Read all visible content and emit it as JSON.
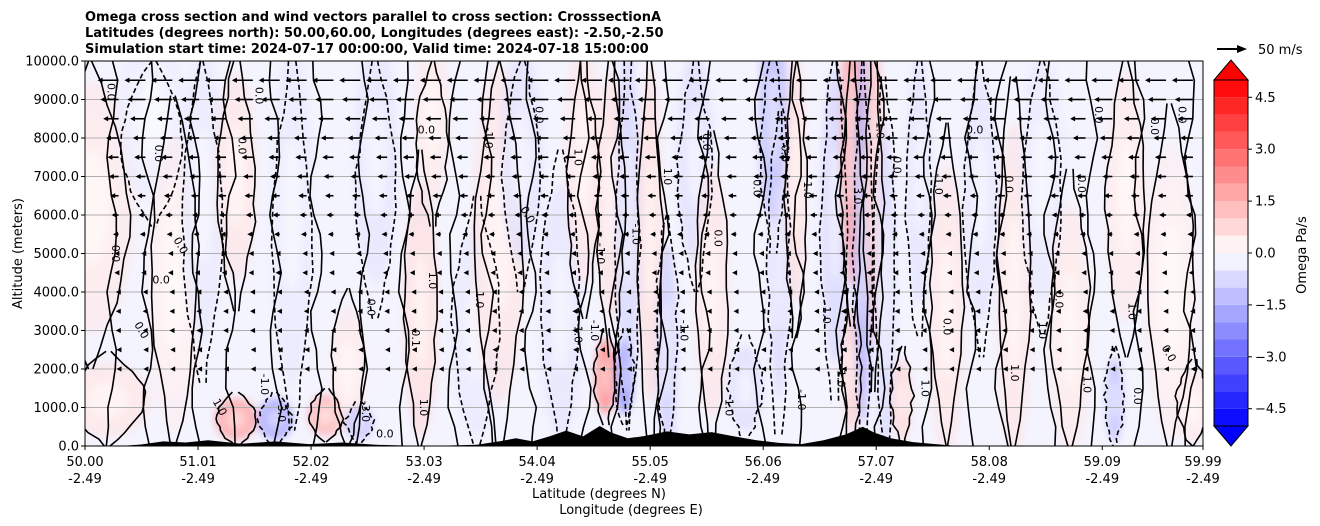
{
  "chart_data": {
    "type": "heatmap",
    "title_lines": [
      "Omega cross section and wind vectors parallel to cross section: CrosssectionA",
      "Latitudes (degrees north): 50.00,60.00, Longitudes (degrees east): -2.50,-2.50",
      "Simulation start time: 2024-07-17 00:00:00, Valid time: 2024-07-18 15:00:00"
    ],
    "xlabel_lines": [
      "Latitude (degrees N)",
      "Longitude (degrees E)"
    ],
    "ylabel": "Altitude (meters)",
    "xlim": [
      50.0,
      59.99
    ],
    "ylim": [
      0,
      10000
    ],
    "x_ticks": [
      {
        "value": 50.0,
        "lat": "50.00",
        "lon": "-2.49"
      },
      {
        "value": 51.01,
        "lat": "51.01",
        "lon": "-2.49"
      },
      {
        "value": 52.02,
        "lat": "52.02",
        "lon": "-2.49"
      },
      {
        "value": 53.03,
        "lat": "53.03",
        "lon": "-2.49"
      },
      {
        "value": 54.04,
        "lat": "54.04",
        "lon": "-2.49"
      },
      {
        "value": 55.05,
        "lat": "55.05",
        "lon": "-2.49"
      },
      {
        "value": 56.06,
        "lat": "56.06",
        "lon": "-2.49"
      },
      {
        "value": 57.07,
        "lat": "57.07",
        "lon": "-2.49"
      },
      {
        "value": 58.08,
        "lat": "58.08",
        "lon": "-2.49"
      },
      {
        "value": 59.09,
        "lat": "59.09",
        "lon": "-2.49"
      },
      {
        "value": 59.99,
        "lat": "59.99",
        "lon": "-2.49"
      }
    ],
    "y_ticks": [
      {
        "value": 0,
        "label": "0.0"
      },
      {
        "value": 1000,
        "label": "1000.0"
      },
      {
        "value": 2000,
        "label": "2000.0"
      },
      {
        "value": 3000,
        "label": "3000.0"
      },
      {
        "value": 4000,
        "label": "4000.0"
      },
      {
        "value": 5000,
        "label": "5000.0"
      },
      {
        "value": 6000,
        "label": "6000.0"
      },
      {
        "value": 7000,
        "label": "7000.0"
      },
      {
        "value": 8000,
        "label": "8000.0"
      },
      {
        "value": 9000,
        "label": "9000.0"
      },
      {
        "value": 10000,
        "label": "10000.0"
      }
    ],
    "grid": "horizontal",
    "colorbar": {
      "label": "Omega Pa/s",
      "range": [
        -5,
        5
      ],
      "extend": "both",
      "levels": [
        -5.0,
        -4.5,
        -4.0,
        -3.5,
        -3.0,
        -2.5,
        -2.0,
        -1.5,
        -1.0,
        -0.5,
        0.0,
        0.5,
        1.0,
        1.5,
        2.0,
        2.5,
        3.0,
        3.5,
        4.0,
        4.5,
        5.0
      ],
      "ticks": [
        {
          "value": 4.5,
          "label": "4.5"
        },
        {
          "value": 3.0,
          "label": "3.0"
        },
        {
          "value": 1.5,
          "label": "1.5"
        },
        {
          "value": 0.0,
          "label": "0.0"
        },
        {
          "value": -1.5,
          "label": "−1.5"
        },
        {
          "value": -3.0,
          "label": "−3.0"
        },
        {
          "value": -4.5,
          "label": "−4.5"
        }
      ],
      "colormap": "bwr",
      "neg_color": "#0000ff",
      "pos_color": "#ff0000",
      "mid_color": "#ffffff"
    },
    "quiver_key": {
      "label": "50 m/s",
      "value": 50
    },
    "omega_features": [
      {
        "lat": 50.05,
        "alt": 6200,
        "amp": 0.5,
        "w": 0.25,
        "h": 3000
      },
      {
        "lat": 50.2,
        "alt": 1200,
        "amp": 0.6,
        "w": 0.25,
        "h": 900
      },
      {
        "lat": 50.6,
        "alt": 8500,
        "amp": -0.4,
        "w": 0.2,
        "h": 2000
      },
      {
        "lat": 50.8,
        "alt": 4200,
        "amp": 0.4,
        "w": 0.15,
        "h": 3500
      },
      {
        "lat": 51.05,
        "alt": 6500,
        "amp": -0.5,
        "w": 0.12,
        "h": 3500
      },
      {
        "lat": 51.35,
        "alt": 700,
        "amp": 2.5,
        "w": 0.12,
        "h": 500
      },
      {
        "lat": 51.35,
        "alt": 7000,
        "amp": 0.6,
        "w": 0.12,
        "h": 2500
      },
      {
        "lat": 51.7,
        "alt": 700,
        "amp": -2.4,
        "w": 0.1,
        "h": 500
      },
      {
        "lat": 51.85,
        "alt": 6000,
        "amp": -0.5,
        "w": 0.12,
        "h": 4000
      },
      {
        "lat": 52.15,
        "alt": 800,
        "amp": 2.0,
        "w": 0.1,
        "h": 500
      },
      {
        "lat": 52.35,
        "alt": 2000,
        "amp": 0.5,
        "w": 0.1,
        "h": 1500
      },
      {
        "lat": 52.45,
        "alt": 600,
        "amp": -1.6,
        "w": 0.08,
        "h": 400
      },
      {
        "lat": 52.6,
        "alt": 7500,
        "amp": -0.6,
        "w": 0.12,
        "h": 3000
      },
      {
        "lat": 53.0,
        "alt": 3500,
        "amp": 0.8,
        "w": 0.1,
        "h": 3000
      },
      {
        "lat": 53.1,
        "alt": 8500,
        "amp": 0.5,
        "w": 0.1,
        "h": 2000
      },
      {
        "lat": 53.5,
        "alt": 3000,
        "amp": -0.5,
        "w": 0.15,
        "h": 2500
      },
      {
        "lat": 53.7,
        "alt": 5500,
        "amp": 0.6,
        "w": 0.15,
        "h": 4000
      },
      {
        "lat": 53.9,
        "alt": 7500,
        "amp": -0.7,
        "w": 0.12,
        "h": 2500
      },
      {
        "lat": 54.25,
        "alt": 3500,
        "amp": -0.6,
        "w": 0.12,
        "h": 3000
      },
      {
        "lat": 54.45,
        "alt": 7500,
        "amp": 0.6,
        "w": 0.1,
        "h": 3000
      },
      {
        "lat": 54.65,
        "alt": 1800,
        "amp": 3.2,
        "w": 0.06,
        "h": 900
      },
      {
        "lat": 54.7,
        "alt": 6500,
        "amp": 0.7,
        "w": 0.08,
        "h": 3000
      },
      {
        "lat": 54.82,
        "alt": 1800,
        "amp": -3.0,
        "w": 0.05,
        "h": 900
      },
      {
        "lat": 54.85,
        "alt": 6000,
        "amp": -1.0,
        "w": 0.07,
        "h": 4000
      },
      {
        "lat": 55.05,
        "alt": 5500,
        "amp": 0.8,
        "w": 0.07,
        "h": 4000
      },
      {
        "lat": 55.2,
        "alt": 2500,
        "amp": -1.2,
        "w": 0.06,
        "h": 2500
      },
      {
        "lat": 55.45,
        "alt": 7500,
        "amp": -0.8,
        "w": 0.1,
        "h": 2500
      },
      {
        "lat": 55.6,
        "alt": 4000,
        "amp": 0.6,
        "w": 0.1,
        "h": 3000
      },
      {
        "lat": 55.9,
        "alt": 1500,
        "amp": -0.8,
        "w": 0.1,
        "h": 1000
      },
      {
        "lat": 56.15,
        "alt": 8500,
        "amp": -1.8,
        "w": 0.08,
        "h": 2500
      },
      {
        "lat": 56.2,
        "alt": 4500,
        "amp": -0.9,
        "w": 0.06,
        "h": 3000
      },
      {
        "lat": 56.35,
        "alt": 7000,
        "amp": 0.8,
        "w": 0.06,
        "h": 3000
      },
      {
        "lat": 56.7,
        "alt": 6000,
        "amp": -1.0,
        "w": 0.08,
        "h": 3500
      },
      {
        "lat": 56.85,
        "alt": 8000,
        "amp": 2.5,
        "w": 0.06,
        "h": 3500
      },
      {
        "lat": 56.85,
        "alt": 2000,
        "amp": 1.2,
        "w": 0.05,
        "h": 1500
      },
      {
        "lat": 56.95,
        "alt": 5500,
        "amp": -2.0,
        "w": 0.05,
        "h": 4500
      },
      {
        "lat": 57.05,
        "alt": 7000,
        "amp": 1.5,
        "w": 0.05,
        "h": 4000
      },
      {
        "lat": 57.15,
        "alt": 4000,
        "amp": -0.9,
        "w": 0.06,
        "h": 4000
      },
      {
        "lat": 57.3,
        "alt": 1200,
        "amp": 1.0,
        "w": 0.06,
        "h": 1000
      },
      {
        "lat": 57.45,
        "alt": 7000,
        "amp": -0.7,
        "w": 0.07,
        "h": 3000
      },
      {
        "lat": 57.7,
        "alt": 3500,
        "amp": 0.6,
        "w": 0.1,
        "h": 3500
      },
      {
        "lat": 58.0,
        "alt": 6500,
        "amp": -0.6,
        "w": 0.1,
        "h": 3000
      },
      {
        "lat": 58.3,
        "alt": 4000,
        "amp": 0.6,
        "w": 0.1,
        "h": 4000
      },
      {
        "lat": 58.55,
        "alt": 7000,
        "amp": -0.5,
        "w": 0.12,
        "h": 3000
      },
      {
        "lat": 58.8,
        "alt": 3000,
        "amp": 0.5,
        "w": 0.12,
        "h": 3000
      },
      {
        "lat": 59.2,
        "alt": 1200,
        "amp": -1.6,
        "w": 0.05,
        "h": 1000
      },
      {
        "lat": 59.3,
        "alt": 6500,
        "amp": 0.5,
        "w": 0.12,
        "h": 3000
      },
      {
        "lat": 59.7,
        "alt": 4000,
        "amp": 0.4,
        "w": 0.15,
        "h": 3500
      },
      {
        "lat": 59.9,
        "alt": 1000,
        "amp": 0.5,
        "w": 0.1,
        "h": 900
      }
    ],
    "contour_labels": [
      {
        "lat": 50.23,
        "alt": 9200,
        "text": "0.0",
        "rot": 90
      },
      {
        "lat": 50.27,
        "alt": 5000,
        "text": "0.0",
        "rot": 90
      },
      {
        "lat": 50.65,
        "alt": 7600,
        "text": "0.0",
        "rot": 90
      },
      {
        "lat": 50.68,
        "alt": 4300,
        "text": "0.0",
        "rot": 0
      },
      {
        "lat": 50.85,
        "alt": 5200,
        "text": "0.0",
        "rot": 60
      },
      {
        "lat": 50.5,
        "alt": 3000,
        "text": "0.0",
        "rot": 60
      },
      {
        "lat": 51.4,
        "alt": 7800,
        "text": "0.0",
        "rot": 90
      },
      {
        "lat": 51.55,
        "alt": 9100,
        "text": "0.0",
        "rot": 90
      },
      {
        "lat": 51.2,
        "alt": 1000,
        "text": "1.0",
        "rot": 60
      },
      {
        "lat": 51.75,
        "alt": 900,
        "text": "-3.0",
        "rot": 90
      },
      {
        "lat": 51.6,
        "alt": 1600,
        "text": "-1.0",
        "rot": 90
      },
      {
        "lat": 52.5,
        "alt": 900,
        "text": "-3.0",
        "rot": 90
      },
      {
        "lat": 52.55,
        "alt": 3600,
        "text": "0.0",
        "rot": 90
      },
      {
        "lat": 52.68,
        "alt": 300,
        "text": "0.0",
        "rot": 0
      },
      {
        "lat": 52.95,
        "alt": 2800,
        "text": "0.1",
        "rot": 90
      },
      {
        "lat": 53.05,
        "alt": 8200,
        "text": "0.0",
        "rot": 0
      },
      {
        "lat": 53.1,
        "alt": 4300,
        "text": "1.0",
        "rot": 90
      },
      {
        "lat": 53.6,
        "alt": 8000,
        "text": "-1.0",
        "rot": 90
      },
      {
        "lat": 53.95,
        "alt": 6000,
        "text": "0.0",
        "rot": 60
      },
      {
        "lat": 53.52,
        "alt": 3800,
        "text": "1.0",
        "rot": 90
      },
      {
        "lat": 53.02,
        "alt": 1000,
        "text": "1.0",
        "rot": 90
      },
      {
        "lat": 54.05,
        "alt": 8600,
        "text": "0.0",
        "rot": 90
      },
      {
        "lat": 54.4,
        "alt": 7500,
        "text": "1.0",
        "rot": 90
      },
      {
        "lat": 54.55,
        "alt": 3000,
        "text": "-1.0",
        "rot": 90
      },
      {
        "lat": 54.4,
        "alt": 2900,
        "text": "1.0",
        "rot": 90
      },
      {
        "lat": 54.6,
        "alt": 5000,
        "text": "-1.0",
        "rot": 90
      },
      {
        "lat": 54.92,
        "alt": 5500,
        "text": "-1.0",
        "rot": 90
      },
      {
        "lat": 55.2,
        "alt": 7000,
        "text": "1.0",
        "rot": 90
      },
      {
        "lat": 55.35,
        "alt": 3000,
        "text": "-1.0",
        "rot": 90
      },
      {
        "lat": 55.55,
        "alt": 7900,
        "text": "0.0",
        "rot": 90
      },
      {
        "lat": 55.65,
        "alt": 5400,
        "text": "0.0",
        "rot": 90
      },
      {
        "lat": 55.75,
        "alt": 1000,
        "text": "1.0",
        "rot": 90
      },
      {
        "lat": 56.0,
        "alt": 6700,
        "text": "0.0",
        "rot": 90
      },
      {
        "lat": 56.25,
        "alt": 7600,
        "text": "0.0",
        "rot": 90
      },
      {
        "lat": 56.45,
        "alt": 6700,
        "text": "-1.0",
        "rot": 90
      },
      {
        "lat": 56.4,
        "alt": 1200,
        "text": "-1.0",
        "rot": 90
      },
      {
        "lat": 56.62,
        "alt": 3400,
        "text": "1.0",
        "rot": 90
      },
      {
        "lat": 56.75,
        "alt": 1800,
        "text": "-1.0",
        "rot": 90
      },
      {
        "lat": 56.9,
        "alt": 6500,
        "text": "3.0",
        "rot": 90
      },
      {
        "lat": 57.1,
        "alt": 8200,
        "text": "1.0",
        "rot": 90
      },
      {
        "lat": 57.25,
        "alt": 7300,
        "text": "0.0",
        "rot": 90
      },
      {
        "lat": 57.5,
        "alt": 1500,
        "text": "1.0",
        "rot": 90
      },
      {
        "lat": 57.62,
        "alt": 6800,
        "text": "-1.0",
        "rot": 90
      },
      {
        "lat": 57.7,
        "alt": 3100,
        "text": "0.0",
        "rot": 90
      },
      {
        "lat": 57.95,
        "alt": 8200,
        "text": "0.0",
        "rot": 0
      },
      {
        "lat": 58.25,
        "alt": 6800,
        "text": "0.0",
        "rot": 90
      },
      {
        "lat": 58.3,
        "alt": 1900,
        "text": "1.0",
        "rot": 90
      },
      {
        "lat": 58.55,
        "alt": 3000,
        "text": "1.0",
        "rot": 90
      },
      {
        "lat": 58.7,
        "alt": 3800,
        "text": "0.0",
        "rot": 90
      },
      {
        "lat": 58.9,
        "alt": 6800,
        "text": "0.0",
        "rot": 90
      },
      {
        "lat": 58.95,
        "alt": 1600,
        "text": "1.0",
        "rot": 90
      },
      {
        "lat": 59.05,
        "alt": 8600,
        "text": "0.0",
        "rot": 90
      },
      {
        "lat": 59.35,
        "alt": 3500,
        "text": "1.0",
        "rot": 90
      },
      {
        "lat": 59.4,
        "alt": 1300,
        "text": "0.0",
        "rot": 90
      },
      {
        "lat": 59.55,
        "alt": 8300,
        "text": "0.0",
        "rot": 90
      },
      {
        "lat": 59.68,
        "alt": 2400,
        "text": "0.0",
        "rot": 60
      },
      {
        "lat": 59.8,
        "alt": 8600,
        "text": "0.0",
        "rot": 90
      }
    ],
    "terrain": [
      {
        "lat": 50.0,
        "alt": 0
      },
      {
        "lat": 50.3,
        "alt": 0
      },
      {
        "lat": 50.5,
        "alt": 40
      },
      {
        "lat": 50.7,
        "alt": 120
      },
      {
        "lat": 50.9,
        "alt": 90
      },
      {
        "lat": 51.1,
        "alt": 150
      },
      {
        "lat": 51.4,
        "alt": 60
      },
      {
        "lat": 51.7,
        "alt": 120
      },
      {
        "lat": 52.0,
        "alt": 50
      },
      {
        "lat": 52.3,
        "alt": 90
      },
      {
        "lat": 52.6,
        "alt": 30
      },
      {
        "lat": 52.9,
        "alt": 10
      },
      {
        "lat": 53.2,
        "alt": 10
      },
      {
        "lat": 53.5,
        "alt": 30
      },
      {
        "lat": 53.7,
        "alt": 120
      },
      {
        "lat": 53.85,
        "alt": 200
      },
      {
        "lat": 54.0,
        "alt": 120
      },
      {
        "lat": 54.15,
        "alt": 250
      },
      {
        "lat": 54.3,
        "alt": 400
      },
      {
        "lat": 54.45,
        "alt": 250
      },
      {
        "lat": 54.6,
        "alt": 520
      },
      {
        "lat": 54.7,
        "alt": 350
      },
      {
        "lat": 54.85,
        "alt": 200
      },
      {
        "lat": 55.0,
        "alt": 260
      },
      {
        "lat": 55.2,
        "alt": 380
      },
      {
        "lat": 55.4,
        "alt": 300
      },
      {
        "lat": 55.6,
        "alt": 360
      },
      {
        "lat": 55.8,
        "alt": 250
      },
      {
        "lat": 56.0,
        "alt": 150
      },
      {
        "lat": 56.2,
        "alt": 80
      },
      {
        "lat": 56.4,
        "alt": 50
      },
      {
        "lat": 56.6,
        "alt": 150
      },
      {
        "lat": 56.8,
        "alt": 300
      },
      {
        "lat": 56.95,
        "alt": 500
      },
      {
        "lat": 57.05,
        "alt": 350
      },
      {
        "lat": 57.2,
        "alt": 200
      },
      {
        "lat": 57.4,
        "alt": 100
      },
      {
        "lat": 57.6,
        "alt": 50
      },
      {
        "lat": 57.8,
        "alt": 0
      },
      {
        "lat": 59.99,
        "alt": 0
      }
    ],
    "wind_u_rows": [
      {
        "alt": 9500,
        "u": -15
      },
      {
        "alt": 9000,
        "u": -13
      },
      {
        "alt": 8500,
        "u": -11
      },
      {
        "alt": 8000,
        "u": -9
      },
      {
        "alt": 7500,
        "u": -8
      },
      {
        "alt": 7000,
        "u": -7
      },
      {
        "alt": 6500,
        "u": -6
      },
      {
        "alt": 6000,
        "u": -5
      },
      {
        "alt": 5500,
        "u": -4
      },
      {
        "alt": 5000,
        "u": -3
      },
      {
        "alt": 4500,
        "u": -3
      },
      {
        "alt": 4000,
        "u": -2
      },
      {
        "alt": 3500,
        "u": -2
      },
      {
        "alt": 3000,
        "u": -2
      },
      {
        "alt": 2500,
        "u": -1.5
      },
      {
        "alt": 2000,
        "u": -1.5
      },
      {
        "alt": 1500,
        "u": -1
      },
      {
        "alt": 1000,
        "u": -1
      }
    ]
  }
}
